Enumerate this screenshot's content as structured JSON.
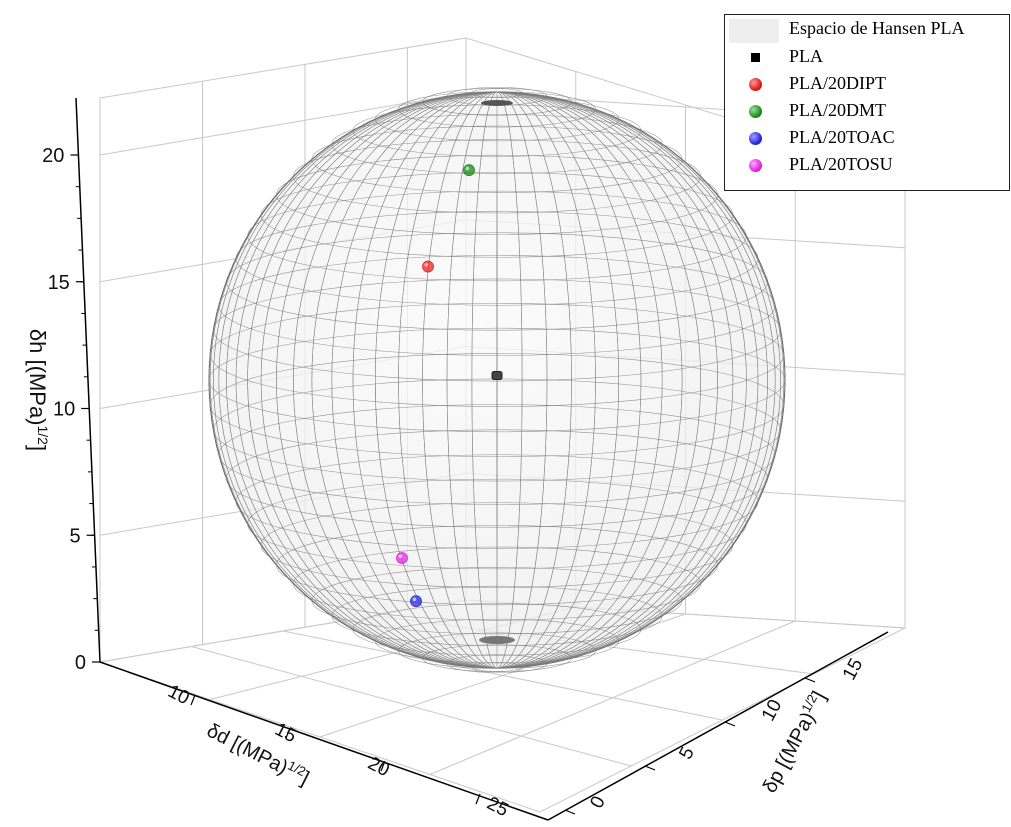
{
  "chart_data": {
    "type": "scatter3d",
    "title": "",
    "xlabel": "δd [(MPa)1/2]",
    "ylabel": "δp [(MPa)1/2]",
    "zlabel": "δh [(MPa)1/2]",
    "x_ticks": [
      "10",
      "15",
      "20",
      "25"
    ],
    "y_ticks": [
      "0",
      "5",
      "10",
      "15"
    ],
    "z_ticks": [
      "0",
      "5",
      "10",
      "15",
      "20"
    ],
    "grid": true,
    "legend_position": "top-right",
    "series": [
      {
        "name": "Espacio de Hansen PLA",
        "kind": "sphere",
        "color": "#d9d9d9"
      },
      {
        "name": "PLA",
        "kind": "point",
        "color": "#000000",
        "h": 11.3
      },
      {
        "name": "PLA/20DIPT",
        "kind": "point",
        "color": "#ee2222",
        "h": 15.6
      },
      {
        "name": "PLA/20DMT",
        "kind": "point",
        "color": "#1a8a1a",
        "h": 19.4
      },
      {
        "name": "PLA/20TOAC",
        "kind": "point",
        "color": "#2a2ae0",
        "h": 2.4
      },
      {
        "name": "PLA/20TOSU",
        "kind": "point",
        "color": "#e02ae0",
        "h": 4.1
      }
    ]
  },
  "axis_labels": {
    "z_main": "δh [(MPa)",
    "z_sup": "1/2",
    "z_end": "]",
    "x_main": "δd [(MPa)",
    "x_sup": "1/2",
    "x_end": "]",
    "y_main": "δp [(MPa)",
    "y_sup": "1/2",
    "y_end": "]"
  },
  "legend": {
    "items": [
      {
        "label": "Espacio de Hansen PLA"
      },
      {
        "label": "PLA"
      },
      {
        "label": "PLA/20DIPT"
      },
      {
        "label": "PLA/20DMT"
      },
      {
        "label": "PLA/20TOAC"
      },
      {
        "label": "PLA/20TOSU"
      }
    ]
  }
}
